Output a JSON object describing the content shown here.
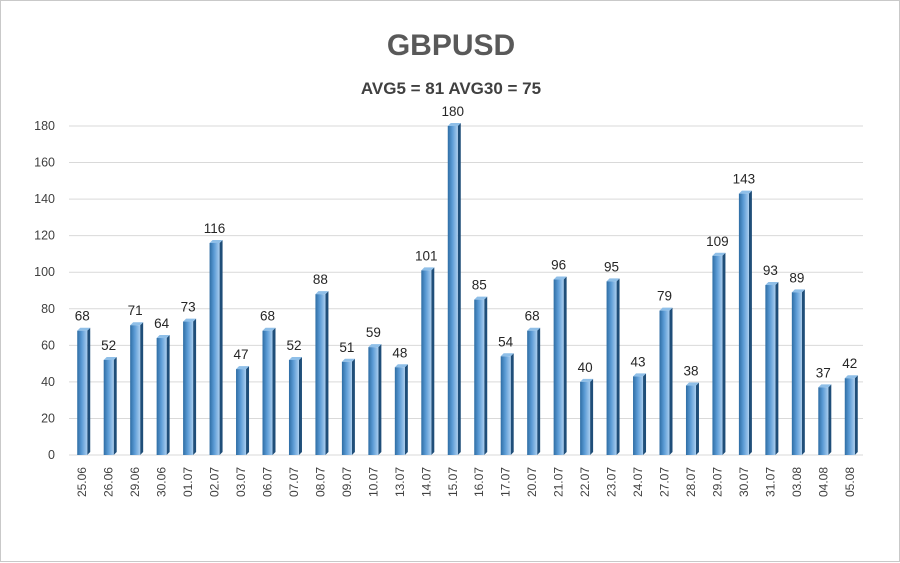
{
  "chart_data": {
    "type": "bar",
    "title": "GBPUSD",
    "subtitle": "AVG5 = 81 AVG30 = 75",
    "categories": [
      "25.06",
      "26.06",
      "29.06",
      "30.06",
      "01.07",
      "02.07",
      "03.07",
      "06.07",
      "07.07",
      "08.07",
      "09.07",
      "10.07",
      "13.07",
      "14.07",
      "15.07",
      "16.07",
      "17.07",
      "20.07",
      "21.07",
      "22.07",
      "23.07",
      "24.07",
      "27.07",
      "28.07",
      "29.07",
      "30.07",
      "31.07",
      "03.08",
      "04.08",
      "05.08"
    ],
    "values": [
      68,
      52,
      71,
      64,
      73,
      116,
      47,
      68,
      52,
      88,
      51,
      59,
      48,
      101,
      180,
      85,
      54,
      68,
      96,
      40,
      95,
      43,
      79,
      38,
      109,
      143,
      93,
      89,
      37,
      42
    ],
    "yticks": [
      0,
      20,
      40,
      60,
      80,
      100,
      120,
      140,
      160,
      180
    ],
    "ylim": [
      0,
      180
    ],
    "grid": true,
    "data_labels": true,
    "colors": {
      "bar": "#5b9bd5",
      "bar_dark": "#2e6da4",
      "bar_light": "#a9cdef",
      "grid": "#d9d9d9"
    }
  }
}
